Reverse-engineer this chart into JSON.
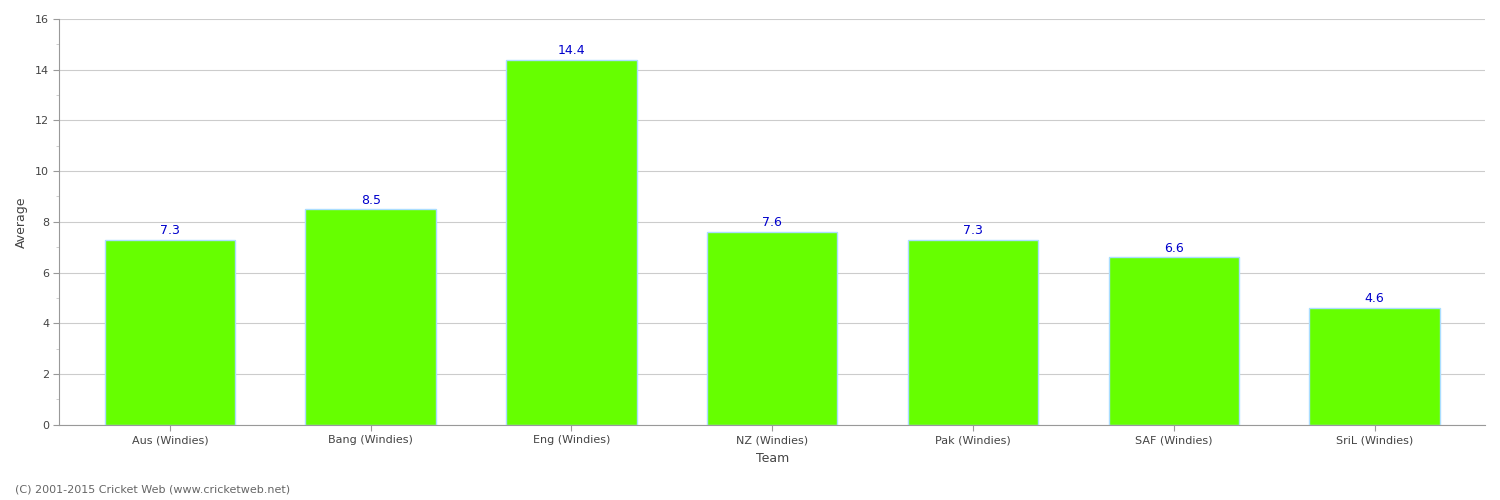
{
  "categories": [
    "Aus (Windies)",
    "Bang (Windies)",
    "Eng (Windies)",
    "NZ (Windies)",
    "Pak (Windies)",
    "SAF (Windies)",
    "SriL (Windies)"
  ],
  "values": [
    7.3,
    8.5,
    14.4,
    7.6,
    7.3,
    6.6,
    4.6
  ],
  "bar_color": "#66ff00",
  "bar_edge_color": "#aaddff",
  "label_color": "#0000cc",
  "ylabel": "Average",
  "xlabel": "Team",
  "ylim": [
    0,
    16
  ],
  "yticks_major": [
    0,
    2,
    4,
    6,
    8,
    10,
    12,
    14,
    16
  ],
  "grid_color": "#cccccc",
  "background_color": "#ffffff",
  "label_fontsize": 9,
  "axis_label_fontsize": 9,
  "tick_label_fontsize": 8,
  "footnote": "(C) 2001-2015 Cricket Web (www.cricketweb.net)",
  "footnote_fontsize": 8
}
